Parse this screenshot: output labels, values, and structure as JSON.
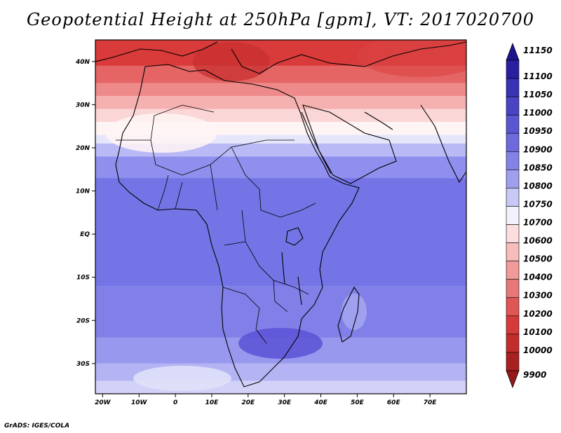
{
  "title": "Geopotential Height at 250hPa [gpm], VT: 2017020700",
  "credit": "GrADS: IGES/COLA",
  "map": {
    "lon_range": [
      -22,
      80
    ],
    "lat_range": [
      -37,
      45
    ],
    "lon_ticks": [
      {
        "value": -20,
        "label": "20W"
      },
      {
        "value": -10,
        "label": "10W"
      },
      {
        "value": 0,
        "label": "0"
      },
      {
        "value": 10,
        "label": "10E"
      },
      {
        "value": 20,
        "label": "20E"
      },
      {
        "value": 30,
        "label": "30E"
      },
      {
        "value": 40,
        "label": "40E"
      },
      {
        "value": 50,
        "label": "50E"
      },
      {
        "value": 60,
        "label": "60E"
      },
      {
        "value": 70,
        "label": "70E"
      }
    ],
    "lat_ticks": [
      {
        "value": 40,
        "label": "40N"
      },
      {
        "value": 30,
        "label": "30N"
      },
      {
        "value": 20,
        "label": "20N"
      },
      {
        "value": 10,
        "label": "10N"
      },
      {
        "value": 0,
        "label": "EQ"
      },
      {
        "value": -10,
        "label": "10S"
      },
      {
        "value": -20,
        "label": "20S"
      },
      {
        "value": -30,
        "label": "30S"
      }
    ],
    "bands": [
      {
        "lat_top": 45,
        "lat_bottom": 39,
        "color": "#d93a3a"
      },
      {
        "lat_top": 39,
        "lat_bottom": 35,
        "color": "#e56464"
      },
      {
        "lat_top": 35,
        "lat_bottom": 32,
        "color": "#ee8a8a"
      },
      {
        "lat_top": 32,
        "lat_bottom": 29,
        "color": "#f5b0b0"
      },
      {
        "lat_top": 29,
        "lat_bottom": 26,
        "color": "#fbd6d6"
      },
      {
        "lat_top": 26,
        "lat_bottom": 23,
        "color": "#fff4f4"
      },
      {
        "lat_top": 23,
        "lat_bottom": 21,
        "color": "#e6e6fb"
      },
      {
        "lat_top": 21,
        "lat_bottom": 18,
        "color": "#b9b9f5"
      },
      {
        "lat_top": 18,
        "lat_bottom": 13,
        "color": "#8f8fee"
      },
      {
        "lat_top": 13,
        "lat_bottom": -12,
        "color": "#7474e6"
      },
      {
        "lat_top": -12,
        "lat_bottom": -24,
        "color": "#8080e8"
      },
      {
        "lat_top": -24,
        "lat_bottom": -30,
        "color": "#9898ee"
      },
      {
        "lat_top": -30,
        "lat_bottom": -34,
        "color": "#b4b4f4"
      },
      {
        "lat_top": -34,
        "lat_bottom": -37,
        "color": "#d2d2f8"
      }
    ]
  },
  "colorbar": {
    "top_label": "11150",
    "bottom_label": "9900",
    "levels": [
      {
        "label": "11100",
        "color": "#2a1f9e"
      },
      {
        "label": "11050",
        "color": "#3a32b4"
      },
      {
        "label": "11000",
        "color": "#4a44c4"
      },
      {
        "label": "10950",
        "color": "#5a56d2"
      },
      {
        "label": "10900",
        "color": "#6e6ade"
      },
      {
        "label": "10850",
        "color": "#8482e6"
      },
      {
        "label": "10800",
        "color": "#a09fee"
      },
      {
        "label": "10750",
        "color": "#c8c8f6"
      },
      {
        "label": "10700",
        "color": "#f2f2fc"
      },
      {
        "label": "10600",
        "color": "#fcdede"
      },
      {
        "label": "10500",
        "color": "#f7bcbc"
      },
      {
        "label": "10400",
        "color": "#f09a9a"
      },
      {
        "label": "10300",
        "color": "#e87878"
      },
      {
        "label": "10200",
        "color": "#e05656"
      },
      {
        "label": "10100",
        "color": "#d63a3a"
      },
      {
        "label": "10000",
        "color": "#c42c2c"
      },
      {
        "label": "9900",
        "color": "#a82020"
      }
    ],
    "top_cap_color": "#1e1490",
    "bottom_cap_color": "#961818"
  }
}
